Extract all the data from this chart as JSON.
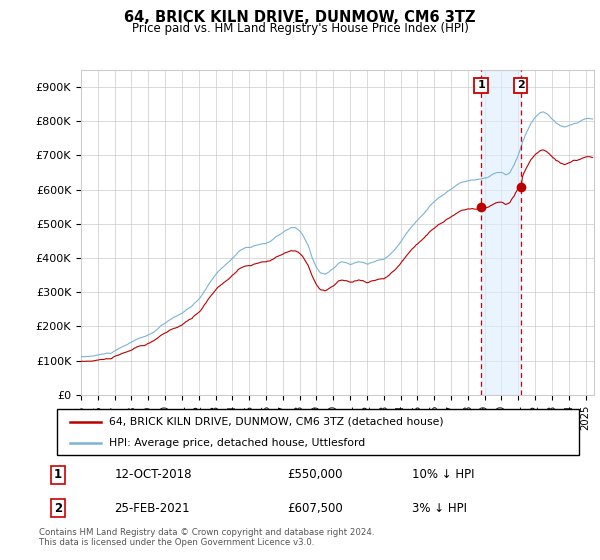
{
  "title": "64, BRICK KILN DRIVE, DUNMOW, CM6 3TZ",
  "subtitle": "Price paid vs. HM Land Registry's House Price Index (HPI)",
  "footer": "Contains HM Land Registry data © Crown copyright and database right 2024.\nThis data is licensed under the Open Government Licence v3.0.",
  "legend_line1": "64, BRICK KILN DRIVE, DUNMOW, CM6 3TZ (detached house)",
  "legend_line2": "HPI: Average price, detached house, Uttlesford",
  "sale1_label": "1",
  "sale1_date": "12-OCT-2018",
  "sale1_price": "£550,000",
  "sale1_hpi": "10% ↓ HPI",
  "sale2_label": "2",
  "sale2_date": "25-FEB-2021",
  "sale2_price": "£607,500",
  "sale2_hpi": "3% ↓ HPI",
  "hpi_color": "#7ab4d8",
  "sale_color": "#bb0000",
  "vline_color": "#cc0000",
  "sale1_x": 2018.79,
  "sale2_x": 2021.15,
  "sale1_y": 550000,
  "sale2_y": 607500,
  "ylim": [
    0,
    950000
  ],
  "yticks": [
    0,
    100000,
    200000,
    300000,
    400000,
    500000,
    600000,
    700000,
    800000,
    900000
  ],
  "ytick_labels": [
    "£0",
    "£100K",
    "£200K",
    "£300K",
    "£400K",
    "£500K",
    "£600K",
    "£700K",
    "£800K",
    "£900K"
  ],
  "xlim_min": 1995,
  "xlim_max": 2025.5
}
